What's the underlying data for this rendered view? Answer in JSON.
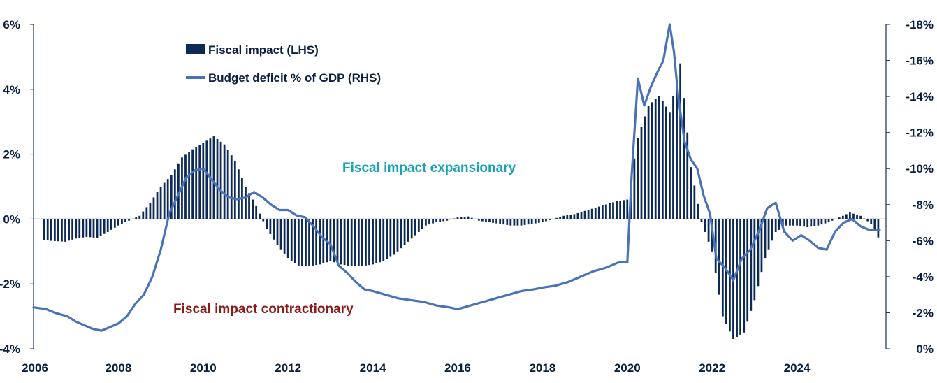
{
  "chart_data": {
    "type": "bar+line",
    "title": "",
    "legend": [
      {
        "label": "Fiscal impact (LHS)",
        "kind": "bar",
        "color": "#0d2a57"
      },
      {
        "label": "Budget deficit % of GDP (RHS)",
        "kind": "line",
        "color": "#4a72ba"
      }
    ],
    "legend_placement": "top-left",
    "annotations": [
      {
        "text": "Fiscal impact expansionary",
        "color": "#17a2b8"
      },
      {
        "text": "Fiscal impact contractionary",
        "color": "#8b1a1a"
      }
    ],
    "x_axis": {
      "range": [
        2006,
        2026.1
      ],
      "ticks": [
        "2006",
        "2008",
        "2010",
        "2012",
        "2014",
        "2016",
        "2018",
        "2020",
        "2022",
        "2024"
      ]
    },
    "y_left": {
      "range": [
        -4,
        6
      ],
      "ticks": [
        "6%",
        "4%",
        "2%",
        "0%",
        "-2%",
        "-4%"
      ],
      "tick_values": [
        6,
        4,
        2,
        0,
        -2,
        -4
      ]
    },
    "y_right": {
      "range": [
        0,
        -18
      ],
      "ticks": [
        "-18%",
        "-16%",
        "-14%",
        "-12%",
        "-10%",
        "-8%",
        "-6%",
        "-4%",
        "-2%",
        "0%"
      ],
      "tick_values": [
        -18,
        -16,
        -14,
        -12,
        -10,
        -8,
        -6,
        -4,
        -2,
        0
      ]
    },
    "series": [
      {
        "name": "Fiscal impact (LHS)",
        "axis": "left",
        "type": "bar",
        "x": [
          2006.25,
          2006.5,
          2006.75,
          2007.0,
          2007.25,
          2007.5,
          2007.75,
          2008.0,
          2008.25,
          2008.5,
          2008.75,
          2009.0,
          2009.25,
          2009.5,
          2009.75,
          2010.0,
          2010.25,
          2010.5,
          2010.75,
          2011.0,
          2011.25,
          2011.5,
          2011.75,
          2012.0,
          2012.25,
          2012.5,
          2012.75,
          2013.0,
          2013.25,
          2013.5,
          2013.75,
          2014.0,
          2014.25,
          2014.5,
          2014.75,
          2015.0,
          2015.25,
          2015.5,
          2015.75,
          2016.0,
          2016.25,
          2016.5,
          2016.75,
          2017.0,
          2017.25,
          2017.5,
          2017.75,
          2018.0,
          2018.25,
          2018.5,
          2018.75,
          2019.0,
          2019.25,
          2019.5,
          2019.75,
          2020.0,
          2020.25,
          2020.5,
          2020.75,
          2021.0,
          2021.25,
          2021.5,
          2021.75,
          2022.0,
          2022.25,
          2022.5,
          2022.75,
          2023.0,
          2023.25,
          2023.5,
          2023.75,
          2024.0,
          2024.25,
          2024.5,
          2024.75,
          2025.0,
          2025.25,
          2025.5,
          2025.75,
          2025.95
        ],
        "values": [
          -0.65,
          -0.68,
          -0.7,
          -0.6,
          -0.55,
          -0.58,
          -0.4,
          -0.2,
          -0.05,
          0.1,
          0.5,
          1.0,
          1.35,
          1.9,
          2.15,
          2.35,
          2.55,
          2.3,
          1.8,
          1.0,
          0.4,
          -0.3,
          -0.8,
          -1.2,
          -1.45,
          -1.45,
          -1.4,
          -1.3,
          -1.4,
          -1.45,
          -1.45,
          -1.4,
          -1.3,
          -1.1,
          -0.8,
          -0.5,
          -0.2,
          -0.1,
          -0.05,
          0.05,
          0.08,
          -0.05,
          -0.1,
          -0.15,
          -0.2,
          -0.2,
          -0.15,
          -0.1,
          0.0,
          0.1,
          0.15,
          0.25,
          0.35,
          0.45,
          0.55,
          0.6,
          2.5,
          3.5,
          3.8,
          3.3,
          4.8,
          1.6,
          -0.1,
          -1.0,
          -3.0,
          -3.7,
          -3.5,
          -2.5,
          -1.2,
          -0.4,
          -0.2,
          -0.2,
          -0.25,
          -0.2,
          -0.1,
          0.05,
          0.2,
          0.1,
          -0.15,
          -0.65
        ]
      },
      {
        "name": "Budget deficit % of GDP (RHS)",
        "axis": "right",
        "type": "line",
        "x": [
          2006.0,
          2006.3,
          2006.5,
          2006.8,
          2007.0,
          2007.2,
          2007.4,
          2007.6,
          2007.8,
          2008.0,
          2008.2,
          2008.4,
          2008.6,
          2008.8,
          2009.0,
          2009.2,
          2009.4,
          2009.6,
          2009.8,
          2010.0,
          2010.2,
          2010.4,
          2010.6,
          2010.8,
          2011.0,
          2011.2,
          2011.4,
          2011.6,
          2011.8,
          2012.0,
          2012.2,
          2012.4,
          2012.6,
          2012.8,
          2013.0,
          2013.2,
          2013.4,
          2013.6,
          2013.8,
          2014.0,
          2014.3,
          2014.6,
          2014.9,
          2015.2,
          2015.5,
          2015.8,
          2016.0,
          2016.3,
          2016.6,
          2016.9,
          2017.2,
          2017.5,
          2017.8,
          2018.0,
          2018.3,
          2018.6,
          2018.9,
          2019.2,
          2019.5,
          2019.8,
          2020.0,
          2020.1,
          2020.25,
          2020.4,
          2020.55,
          2020.7,
          2020.85,
          2021.0,
          2021.1,
          2021.2,
          2021.35,
          2021.5,
          2021.65,
          2021.8,
          2021.95,
          2022.1,
          2022.3,
          2022.5,
          2022.7,
          2022.9,
          2023.1,
          2023.3,
          2023.5,
          2023.7,
          2023.9,
          2024.1,
          2024.3,
          2024.5,
          2024.7,
          2024.9,
          2025.1,
          2025.3,
          2025.5,
          2025.7,
          2025.95
        ],
        "values": [
          -2.3,
          -2.2,
          -2.0,
          -1.8,
          -1.5,
          -1.3,
          -1.1,
          -1.0,
          -1.2,
          -1.4,
          -1.8,
          -2.5,
          -3.0,
          -4.0,
          -5.5,
          -7.5,
          -8.5,
          -9.5,
          -9.9,
          -10.0,
          -9.4,
          -8.8,
          -8.4,
          -8.3,
          -8.4,
          -8.7,
          -8.4,
          -8.0,
          -7.7,
          -7.7,
          -7.4,
          -7.3,
          -6.8,
          -6.2,
          -5.8,
          -4.6,
          -4.2,
          -3.7,
          -3.3,
          -3.2,
          -3.0,
          -2.8,
          -2.7,
          -2.6,
          -2.4,
          -2.3,
          -2.2,
          -2.4,
          -2.6,
          -2.8,
          -3.0,
          -3.2,
          -3.3,
          -3.4,
          -3.5,
          -3.7,
          -4.0,
          -4.3,
          -4.5,
          -4.8,
          -4.8,
          -9.5,
          -15.0,
          -13.5,
          -14.5,
          -15.3,
          -16.0,
          -18.0,
          -16.5,
          -14.0,
          -11.5,
          -10.5,
          -10.0,
          -8.5,
          -7.5,
          -5.0,
          -4.5,
          -3.8,
          -5.0,
          -5.5,
          -6.5,
          -7.8,
          -8.1,
          -6.5,
          -6.0,
          -6.3,
          -6.0,
          -5.6,
          -5.5,
          -6.5,
          -7.0,
          -7.2,
          -6.8,
          -6.6,
          -6.6
        ]
      }
    ]
  }
}
